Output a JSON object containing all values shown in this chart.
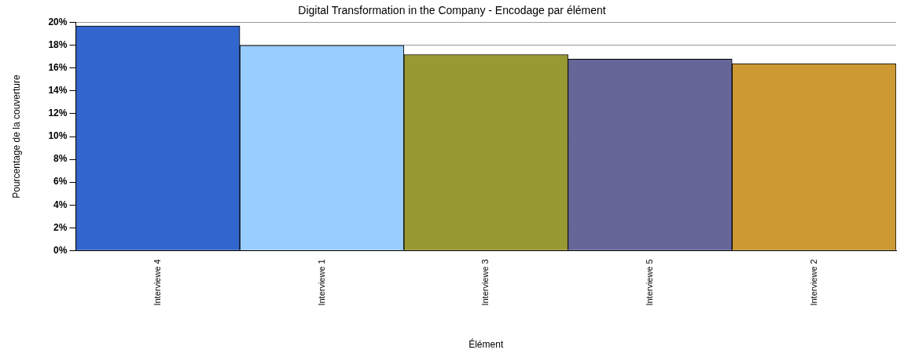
{
  "chart_data": {
    "type": "bar",
    "title": "Digital Transformation in the Company - Encodage par élément",
    "xlabel": "Élément",
    "ylabel": "Pourcentage de la couverture",
    "categories": [
      "Interviewe 4",
      "Interviewe 1",
      "Interviewe 3",
      "Interviewe 5",
      "Interviewe 2"
    ],
    "values": [
      19.7,
      18.0,
      17.2,
      16.8,
      16.4
    ],
    "colors": [
      "#3366cc",
      "#99ccff",
      "#999933",
      "#666699",
      "#cc9933"
    ],
    "ylim": [
      0,
      20
    ],
    "yticks": [
      {
        "value": 0,
        "label": "0%"
      },
      {
        "value": 2,
        "label": "2%"
      },
      {
        "value": 4,
        "label": "4%"
      },
      {
        "value": 6,
        "label": "6%"
      },
      {
        "value": 8,
        "label": "8%"
      },
      {
        "value": 10,
        "label": "10%"
      },
      {
        "value": 12,
        "label": "12%"
      },
      {
        "value": 14,
        "label": "14%"
      },
      {
        "value": 16,
        "label": "16%"
      },
      {
        "value": 18,
        "label": "18%"
      },
      {
        "value": 20,
        "label": "20%"
      }
    ],
    "grid": "y",
    "legend": false
  }
}
